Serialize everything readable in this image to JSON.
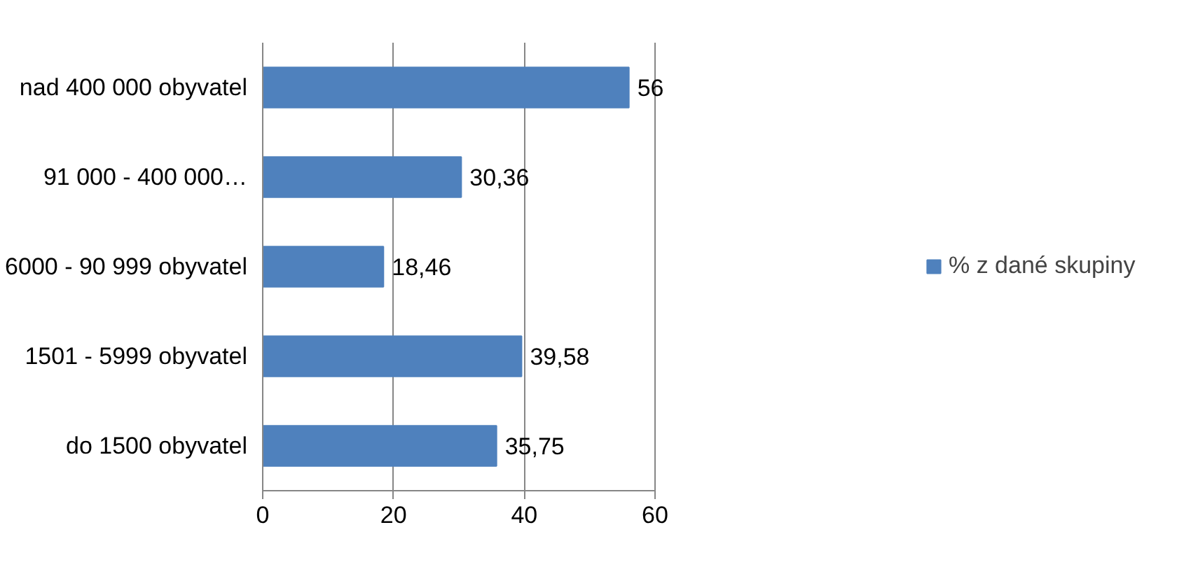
{
  "chart_data": {
    "type": "bar",
    "orientation": "horizontal",
    "categories": [
      "nad 400 000 obyvatel",
      "91 000 - 400 000…",
      "6000 - 90 999 obyvatel",
      "1501 - 5999 obyvatel",
      "do 1500 obyvatel"
    ],
    "series": [
      {
        "name": "% z dané skupiny",
        "color": "#4f81bd",
        "values": [
          56,
          30.36,
          18.46,
          39.58,
          35.75
        ],
        "value_labels": [
          "56",
          "30,36",
          "18,46",
          "39,58",
          "35,75"
        ]
      }
    ],
    "xlim": [
      0,
      60
    ],
    "xticks": [
      0,
      20,
      40,
      60
    ],
    "grid": "x",
    "legend": "right"
  }
}
